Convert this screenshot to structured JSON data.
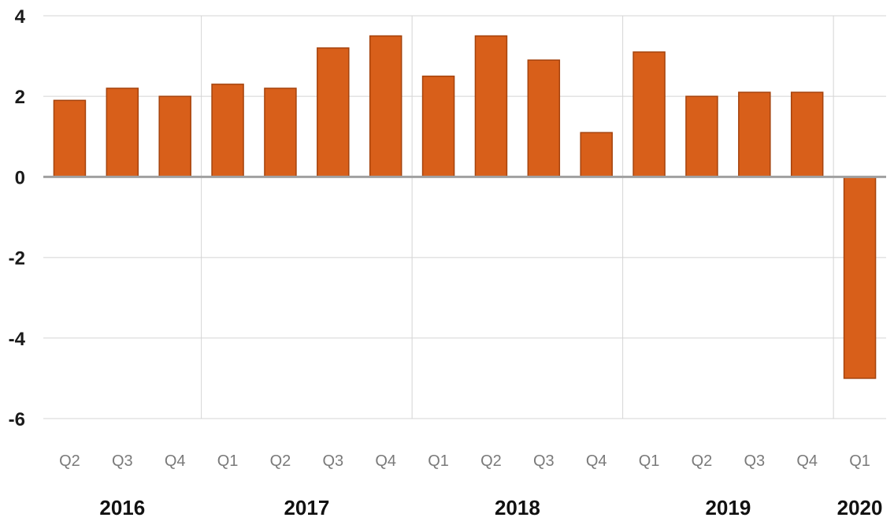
{
  "chart_data": {
    "type": "bar",
    "categories": [
      "Q2",
      "Q3",
      "Q4",
      "Q1",
      "Q2",
      "Q3",
      "Q4",
      "Q1",
      "Q2",
      "Q3",
      "Q4",
      "Q1",
      "Q2",
      "Q3",
      "Q4",
      "Q1"
    ],
    "groups": [
      {
        "label": "2016",
        "count": 3
      },
      {
        "label": "2017",
        "count": 4
      },
      {
        "label": "2018",
        "count": 4
      },
      {
        "label": "2019",
        "count": 4
      },
      {
        "label": "2020",
        "count": 1
      }
    ],
    "values": [
      1.9,
      2.2,
      2.0,
      2.3,
      2.2,
      3.2,
      3.5,
      2.5,
      3.5,
      2.9,
      1.1,
      3.1,
      2.0,
      2.1,
      2.1,
      -5.0
    ],
    "ylim": [
      -6,
      4
    ],
    "yticks": [
      4,
      2,
      0,
      -2,
      -4,
      -6
    ],
    "title": "",
    "xlabel": "",
    "ylabel": "",
    "grid": true,
    "bar_color": "#d85f1a",
    "bar_edge_color": "#a5430d",
    "zero_line_color": "#a0a0a0",
    "grid_color": "#e3e3e3"
  }
}
